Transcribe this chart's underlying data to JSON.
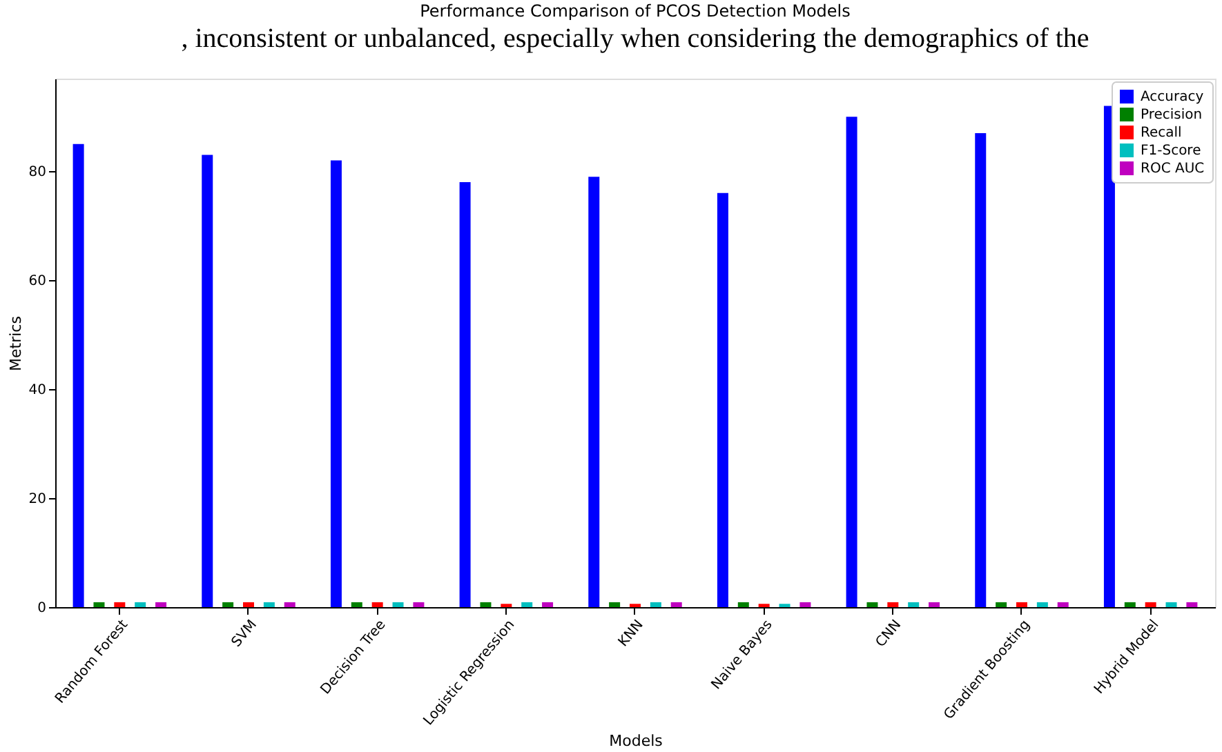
{
  "chart_data": {
    "type": "bar",
    "title": "Performance Comparison of PCOS Detection Models",
    "annotations": [
      ", inconsistent or unbalanced, especially when considering the demographics of the"
    ],
    "xlabel": "Models",
    "ylabel": "Metrics",
    "categories": [
      "Random Forest",
      "SVM",
      "Decision Tree",
      "Logistic Regression",
      "KNN",
      "Naive Bayes",
      "CNN",
      "Gradient Boosting",
      "Hybrid Model"
    ],
    "series": [
      {
        "name": "Accuracy",
        "color": "#0000ff",
        "values": [
          85,
          83,
          82,
          78,
          79,
          76,
          90,
          87,
          92
        ]
      },
      {
        "name": "Precision",
        "color": "#008000",
        "values": [
          0.9,
          0.9,
          0.9,
          0.9,
          0.9,
          0.9,
          0.9,
          0.9,
          0.9
        ]
      },
      {
        "name": "Recall",
        "color": "#ff0000",
        "values": [
          0.9,
          0.9,
          0.9,
          0.6,
          0.6,
          0.6,
          0.9,
          0.9,
          0.9
        ]
      },
      {
        "name": "F1-Score",
        "color": "#00bfbf",
        "values": [
          0.9,
          0.9,
          0.9,
          0.9,
          0.9,
          0.6,
          0.9,
          0.9,
          0.9
        ]
      },
      {
        "name": "ROC AUC",
        "color": "#bf00bf",
        "values": [
          0.9,
          0.9,
          0.9,
          0.9,
          0.9,
          0.9,
          0.9,
          0.9,
          0.9
        ]
      }
    ],
    "ylim": [
      0,
      97
    ],
    "yticks": [
      0,
      20,
      40,
      60,
      80
    ],
    "grid": false,
    "legend": "top right"
  }
}
